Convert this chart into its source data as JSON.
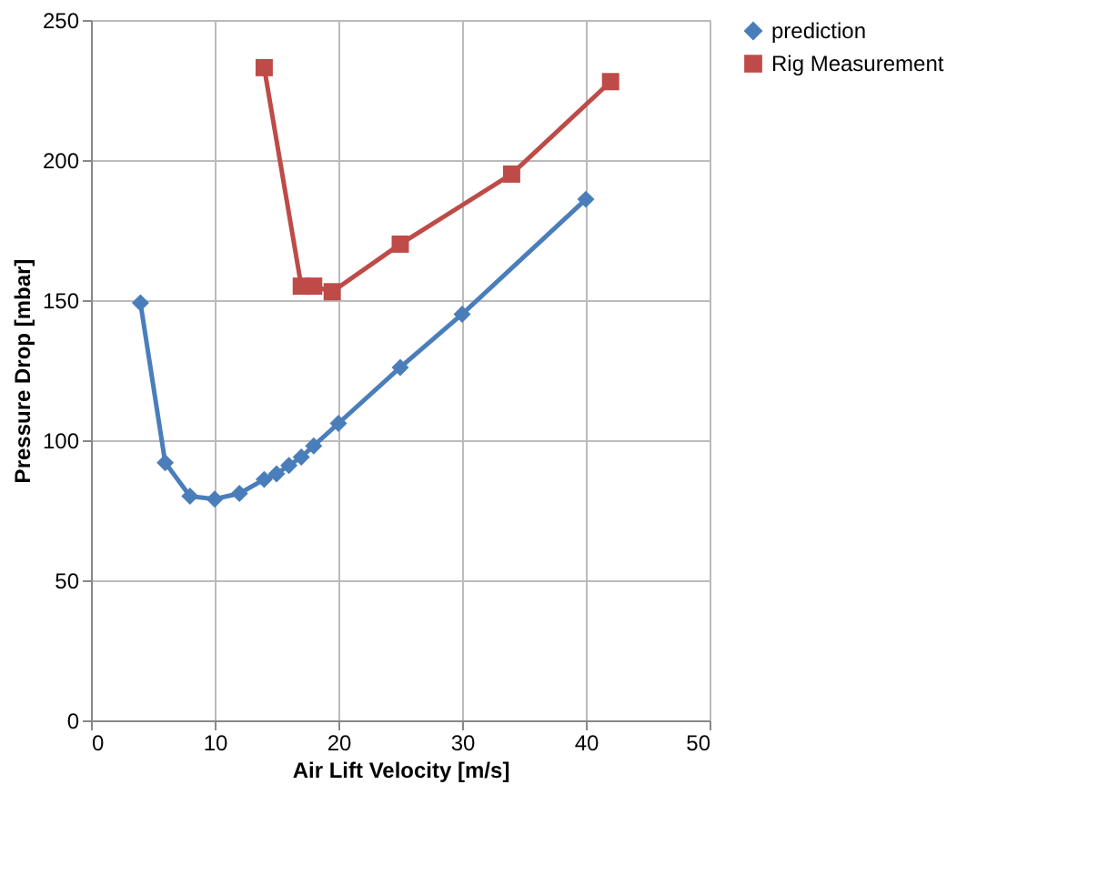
{
  "chart_data": {
    "type": "line",
    "xlabel": "Air Lift Velocity [m/s]",
    "ylabel": "Pressure Drop [mbar]",
    "xlim": [
      0,
      50
    ],
    "xticks": [
      0,
      10,
      20,
      30,
      40,
      50
    ],
    "ylim": [
      0,
      250
    ],
    "yticks": [
      0,
      50,
      100,
      150,
      200,
      250
    ],
    "grid": true,
    "legend": "right",
    "line_style": "solid",
    "series": [
      {
        "name": "prediction",
        "color": "#4a7ebb",
        "marker": "diamond",
        "x": [
          4,
          6,
          8,
          10,
          12,
          14,
          15,
          16,
          17,
          18,
          20,
          25,
          30,
          40
        ],
        "values": [
          149,
          92,
          80,
          79,
          81,
          86,
          88,
          91,
          94,
          98,
          106,
          126,
          145,
          186
        ]
      },
      {
        "name": "Rig Measurement",
        "color": "#be4b48",
        "marker": "square",
        "x": [
          14,
          17,
          18,
          19.5,
          25,
          34,
          42
        ],
        "values": [
          233,
          155,
          155,
          153,
          170,
          195,
          228
        ]
      }
    ]
  }
}
